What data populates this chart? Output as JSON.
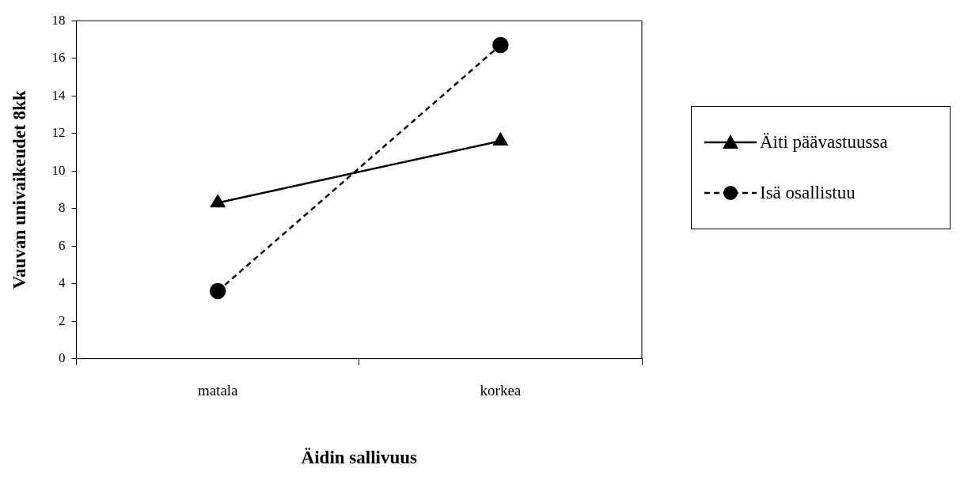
{
  "chart_data": {
    "type": "line",
    "xlabel": "Äidin sallivuus",
    "ylabel": "Vauvan univaikeudet 8kk",
    "categories": [
      "matala",
      "korkea"
    ],
    "series": [
      {
        "name": "Äiti päävastuussa",
        "color": "#000000",
        "values": [
          8.3,
          11.6
        ],
        "marker": "triangle",
        "line_style": "solid"
      },
      {
        "name": "Isä osallistuu",
        "color": "#000000",
        "values": [
          3.6,
          16.7
        ],
        "marker": "circle",
        "line_style": "dashed"
      }
    ],
    "ylim": [
      0,
      18
    ],
    "yticks": [
      0,
      2,
      4,
      6,
      8,
      10,
      12,
      14,
      16,
      18
    ],
    "grid": false,
    "legend": "right"
  }
}
